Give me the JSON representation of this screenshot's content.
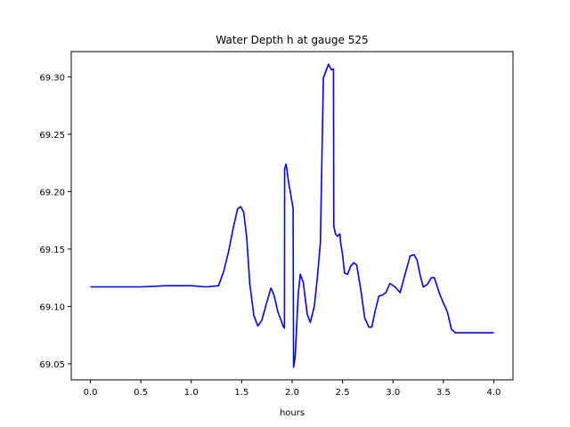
{
  "chart_data": {
    "type": "line",
    "title": "Water Depth h at gauge 525",
    "xlabel": "hours",
    "ylabel": "",
    "xlim": [
      -0.19,
      4.19
    ],
    "ylim": [
      69.036,
      69.322
    ],
    "grid": false,
    "legend": "none",
    "line_color": "#0000ff",
    "xticks": [
      0.0,
      0.5,
      1.0,
      1.5,
      2.0,
      2.5,
      3.0,
      3.5,
      4.0
    ],
    "xtick_labels": [
      "0.0",
      "0.5",
      "1.0",
      "1.5",
      "2.0",
      "2.5",
      "3.0",
      "3.5",
      "4.0"
    ],
    "yticks": [
      69.05,
      69.1,
      69.15,
      69.2,
      69.25,
      69.3
    ],
    "ytick_labels": [
      "69.05",
      "69.10",
      "69.15",
      "69.20",
      "69.25",
      "69.30"
    ],
    "series": [
      {
        "x": [
          0.0,
          0.25,
          0.5,
          0.75,
          1.0,
          1.15,
          1.27,
          1.32,
          1.37,
          1.42,
          1.46,
          1.49,
          1.52,
          1.55,
          1.58,
          1.62,
          1.66,
          1.7,
          1.75,
          1.79,
          1.82,
          1.86,
          1.89,
          1.91,
          1.924,
          1.926,
          1.94,
          1.95,
          1.97,
          1.98,
          2.01,
          2.014,
          2.03,
          2.06,
          2.08,
          2.11,
          2.13,
          2.15,
          2.18,
          2.22,
          2.25,
          2.28,
          2.31,
          2.36,
          2.39,
          2.41,
          2.413,
          2.43,
          2.45,
          2.47,
          2.474,
          2.48,
          2.5,
          2.52,
          2.55,
          2.58,
          2.61,
          2.64,
          2.68,
          2.72,
          2.76,
          2.79,
          2.82,
          2.86,
          2.9,
          2.93,
          2.97,
          3.02,
          3.07,
          3.12,
          3.17,
          3.21,
          3.24,
          3.27,
          3.3,
          3.34,
          3.38,
          3.41,
          3.45,
          3.49,
          3.54,
          3.58,
          3.62,
          3.66,
          3.7,
          3.75,
          3.8,
          3.86,
          3.91,
          3.96,
          4.0
        ],
        "y": [
          69.117,
          69.117,
          69.117,
          69.118,
          69.118,
          69.117,
          69.118,
          69.13,
          69.148,
          69.17,
          69.185,
          69.187,
          69.182,
          69.16,
          69.12,
          69.092,
          69.083,
          69.088,
          69.104,
          69.116,
          69.11,
          69.095,
          69.088,
          69.083,
          69.081,
          69.22,
          69.224,
          69.218,
          69.205,
          69.201,
          69.185,
          69.047,
          69.056,
          69.11,
          69.128,
          69.121,
          69.107,
          69.093,
          69.086,
          69.1,
          69.125,
          69.155,
          69.299,
          69.311,
          69.306,
          69.307,
          69.17,
          69.163,
          69.161,
          69.163,
          69.163,
          69.156,
          69.145,
          69.129,
          69.128,
          69.135,
          69.138,
          69.136,
          69.115,
          69.09,
          69.082,
          69.082,
          69.095,
          69.109,
          69.11,
          69.112,
          69.12,
          69.117,
          69.112,
          69.128,
          69.144,
          69.145,
          69.14,
          69.127,
          69.117,
          69.119,
          69.125,
          69.125,
          69.114,
          69.105,
          69.095,
          69.08,
          69.077,
          69.077,
          69.077,
          69.077,
          69.077,
          69.077,
          69.077,
          69.077,
          69.077
        ]
      }
    ]
  }
}
